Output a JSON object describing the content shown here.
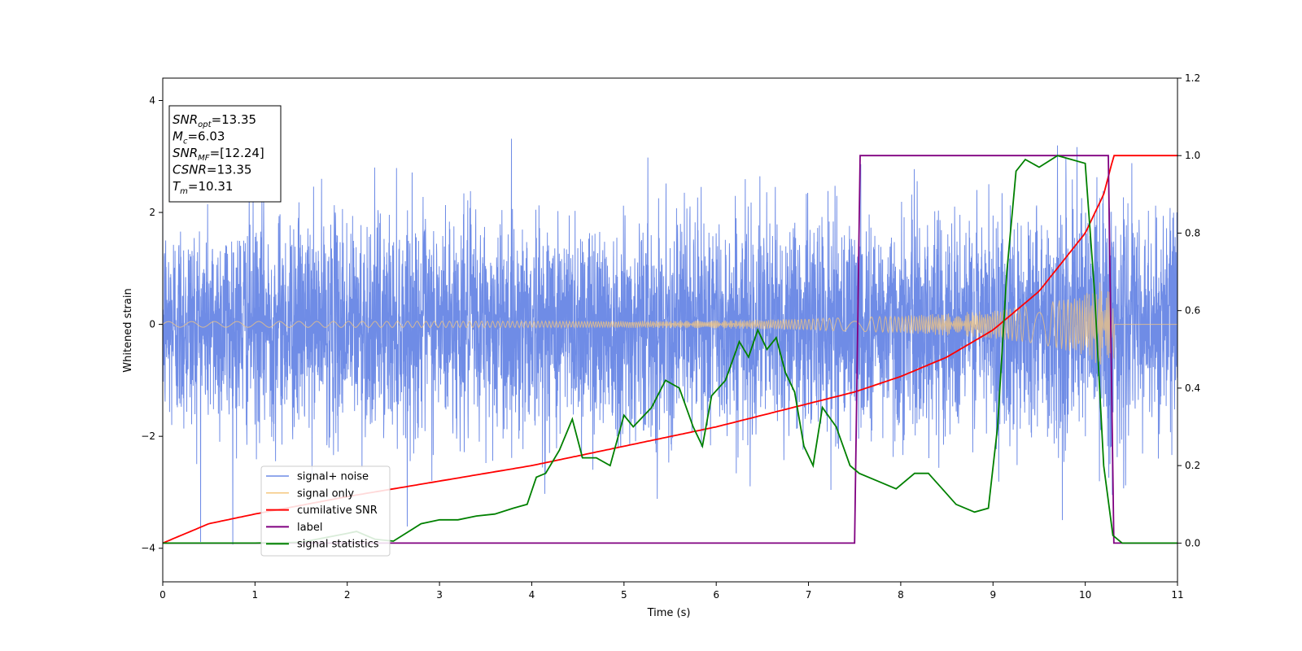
{
  "chart_data": {
    "type": "line",
    "xlabel": "Time (s)",
    "ylabel": "Whitened strain",
    "xlim": [
      0,
      11
    ],
    "ylim_left": [
      -4.6,
      4.4
    ],
    "ylim_right": [
      -0.1,
      1.2
    ],
    "x_ticks": [
      "0",
      "1",
      "2",
      "3",
      "4",
      "5",
      "6",
      "7",
      "8",
      "9",
      "10",
      "11"
    ],
    "y_ticks_left": [
      "−4",
      "−2",
      "0",
      "2",
      "4"
    ],
    "y_ticks_right": [
      "0.0",
      "0.2",
      "0.4",
      "0.6",
      "0.8",
      "1.0",
      "1.2"
    ],
    "colors": {
      "noise": "#6f8ce6",
      "signal": "#f5c77e",
      "csnr": "#ff0000",
      "label": "#800080",
      "stat": "#008000"
    },
    "legend": {
      "position": "lower-left",
      "entries": [
        "signal+ noise",
        "signal only",
        "cumilative SNR",
        "label",
        "signal statistics"
      ]
    },
    "annotation": {
      "lines": [
        {
          "sym": "SNR",
          "sub": "opt",
          "val": "=13.35"
        },
        {
          "sym": "M",
          "sub": "c",
          "val": "=6.03"
        },
        {
          "sym": "SNR",
          "sub": "MF",
          "val": "=[12.24]"
        },
        {
          "sym": "CSNR",
          "sub": "",
          "val": "=13.35"
        },
        {
          "sym": "T",
          "sub": "m",
          "val": "=10.31"
        }
      ]
    },
    "series": [
      {
        "name": "signal+ noise",
        "axis": "left",
        "noise_sigma": 0.95,
        "x_range": [
          0,
          11
        ]
      },
      {
        "name": "signal only",
        "axis": "left",
        "envelope": {
          "x": [
            0,
            5,
            6,
            7,
            8,
            9,
            9.5,
            10,
            10.2,
            10.3
          ],
          "y": [
            0.05,
            0.06,
            0.07,
            0.1,
            0.15,
            0.25,
            0.35,
            0.55,
            0.8,
            1.3
          ]
        },
        "merger_time": 10.31
      },
      {
        "name": "cumilative SNR",
        "axis": "right",
        "x": [
          0,
          0.5,
          1,
          2,
          3,
          4,
          5,
          6,
          7,
          7.5,
          8,
          8.5,
          9,
          9.5,
          10,
          10.2,
          10.31,
          11
        ],
        "y": [
          0,
          0.05,
          0.075,
          0.12,
          0.16,
          0.2,
          0.25,
          0.3,
          0.36,
          0.39,
          0.43,
          0.48,
          0.55,
          0.65,
          0.8,
          0.9,
          1.0,
          1.0
        ]
      },
      {
        "name": "label",
        "axis": "right",
        "x": [
          0,
          7.5,
          7.56,
          10.25,
          10.31,
          11
        ],
        "y": [
          0,
          0,
          1,
          1,
          0,
          0
        ]
      },
      {
        "name": "signal statistics",
        "axis": "right",
        "x": [
          0,
          1,
          1.5,
          2,
          2.1,
          2.3,
          2.5,
          2.8,
          3,
          3.2,
          3.4,
          3.6,
          3.8,
          3.95,
          4.05,
          4.15,
          4.3,
          4.44,
          4.55,
          4.7,
          4.85,
          5.0,
          5.1,
          5.3,
          5.45,
          5.6,
          5.75,
          5.85,
          5.95,
          6.1,
          6.25,
          6.35,
          6.45,
          6.55,
          6.65,
          6.75,
          6.85,
          6.95,
          7.05,
          7.15,
          7.3,
          7.45,
          7.55,
          7.75,
          7.95,
          8.15,
          8.3,
          8.45,
          8.6,
          8.8,
          8.95,
          9.05,
          9.15,
          9.25,
          9.35,
          9.5,
          9.7,
          9.85,
          10.0,
          10.1,
          10.2,
          10.3,
          10.4,
          11
        ],
        "y": [
          0,
          0,
          0.002,
          0.025,
          0.03,
          0.01,
          0.005,
          0.05,
          0.06,
          0.06,
          0.07,
          0.075,
          0.09,
          0.1,
          0.17,
          0.18,
          0.24,
          0.32,
          0.22,
          0.22,
          0.2,
          0.33,
          0.3,
          0.35,
          0.42,
          0.4,
          0.3,
          0.25,
          0.38,
          0.42,
          0.52,
          0.48,
          0.55,
          0.5,
          0.53,
          0.44,
          0.39,
          0.25,
          0.2,
          0.35,
          0.3,
          0.2,
          0.18,
          0.16,
          0.14,
          0.18,
          0.18,
          0.14,
          0.1,
          0.08,
          0.09,
          0.3,
          0.7,
          0.96,
          0.99,
          0.97,
          1.0,
          0.99,
          0.98,
          0.65,
          0.2,
          0.02,
          0.0,
          0.0
        ]
      }
    ]
  }
}
